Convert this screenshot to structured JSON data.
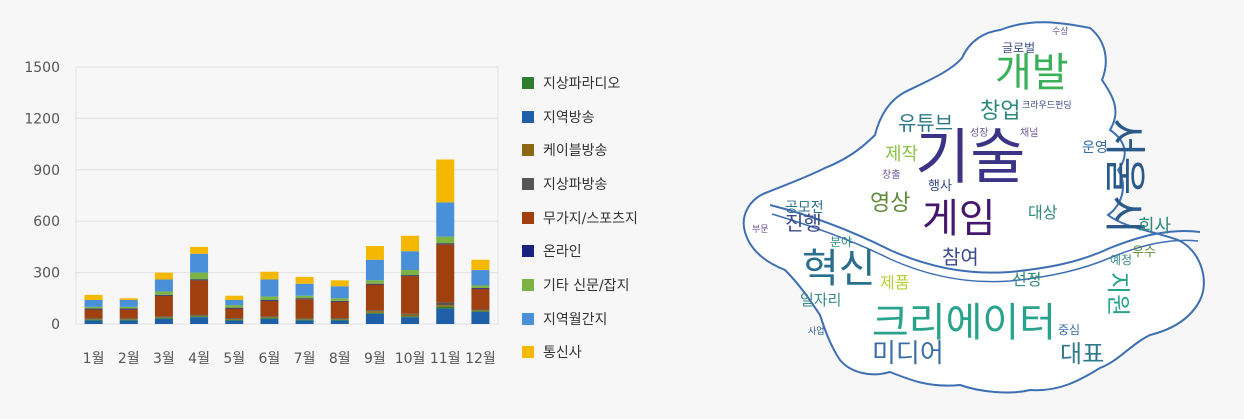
{
  "chart_data": {
    "type": "bar",
    "stacked": true,
    "categories": [
      "1월",
      "2월",
      "3월",
      "4월",
      "5월",
      "6월",
      "7월",
      "8월",
      "9월",
      "10월",
      "11월",
      "12월"
    ],
    "y_ticks": [
      "1500",
      "1200",
      "900",
      "600",
      "300",
      "0"
    ],
    "ylim": [
      0,
      1500
    ],
    "grid": true,
    "legend_position": "right",
    "series": [
      {
        "name": "통신사",
        "color": "#f5b800",
        "values": [
          30,
          10,
          40,
          40,
          25,
          45,
          40,
          35,
          80,
          90,
          250,
          60
        ]
      },
      {
        "name": "지역월간지",
        "color": "#4a90d9",
        "values": [
          40,
          40,
          70,
          110,
          30,
          100,
          70,
          70,
          120,
          110,
          200,
          90
        ]
      },
      {
        "name": "기타 신문/잡지",
        "color": "#7cb342",
        "values": [
          10,
          10,
          20,
          40,
          15,
          20,
          15,
          15,
          20,
          30,
          40,
          15
        ]
      },
      {
        "name": "온라인",
        "color": "#1a237e",
        "values": [
          5,
          5,
          5,
          5,
          5,
          5,
          5,
          5,
          5,
          5,
          5,
          5
        ]
      },
      {
        "name": "무가지/스포츠지",
        "color": "#a0400f",
        "values": [
          50,
          50,
          120,
          200,
          55,
          90,
          110,
          95,
          150,
          220,
          340,
          120
        ]
      },
      {
        "name": "지상파방송",
        "color": "#555555",
        "values": [
          5,
          5,
          5,
          5,
          5,
          5,
          5,
          5,
          5,
          5,
          15,
          5
        ]
      },
      {
        "name": "케이블방송",
        "color": "#8b6914",
        "values": [
          5,
          5,
          5,
          5,
          5,
          5,
          5,
          5,
          10,
          10,
          10,
          5
        ]
      },
      {
        "name": "지역방송",
        "color": "#1f5fa8",
        "values": [
          20,
          20,
          30,
          40,
          20,
          30,
          20,
          20,
          60,
          40,
          90,
          70
        ]
      },
      {
        "name": "지상파라디오",
        "color": "#2e7d32",
        "values": [
          5,
          5,
          5,
          5,
          5,
          5,
          5,
          5,
          5,
          5,
          10,
          5
        ]
      }
    ],
    "bar_stack_order": [
      "지역방송",
      "지상파라디오",
      "케이블방송",
      "지상파방송",
      "무가지/스포츠지",
      "온라인",
      "기타 신문/잡지",
      "지역월간지",
      "통신사"
    ],
    "segment_colors_bottom_to_top": [
      "#1f5fa8",
      "#e8772e",
      "#f5b800",
      "#4a90d9",
      "#7cb342",
      "#8b4513",
      "#a0400f",
      "#555555",
      "#8b6914"
    ]
  },
  "wordcloud": {
    "words": [
      {
        "text": "기술",
        "color": "#3b3486"
      },
      {
        "text": "개발",
        "color": "#3bb05a"
      },
      {
        "text": "게임",
        "color": "#46176e"
      },
      {
        "text": "서울시",
        "color": "#2a5a8a"
      },
      {
        "text": "혁신",
        "color": "#2b6f8e"
      },
      {
        "text": "크리에이터",
        "color": "#2aa38d"
      },
      {
        "text": "미디어",
        "color": "#3a6ea5"
      },
      {
        "text": "창업",
        "color": "#2a8a7a"
      },
      {
        "text": "유튜브",
        "color": "#2e7a8a"
      },
      {
        "text": "제작",
        "color": "#8bc34a"
      },
      {
        "text": "영상",
        "color": "#5e8a3a"
      },
      {
        "text": "진행",
        "color": "#3a4a8a"
      },
      {
        "text": "참여",
        "color": "#3a4a8a"
      },
      {
        "text": "대상",
        "color": "#2e8a7a"
      },
      {
        "text": "선정",
        "color": "#2e8a7a"
      },
      {
        "text": "지원",
        "color": "#2aa38d"
      },
      {
        "text": "대표",
        "color": "#2e7a8a"
      },
      {
        "text": "회사",
        "color": "#2e8a7a"
      },
      {
        "text": "제품",
        "color": "#b2d235"
      },
      {
        "text": "운영",
        "color": "#3a6ea5"
      },
      {
        "text": "공모전",
        "color": "#2b6f8e"
      },
      {
        "text": "일자리",
        "color": "#3a8a8a"
      },
      {
        "text": "행사",
        "color": "#3a4a8a"
      },
      {
        "text": "우수",
        "color": "#5e8a3a"
      },
      {
        "text": "예정",
        "color": "#3a8a8a"
      },
      {
        "text": "분야",
        "color": "#2e8a7a"
      },
      {
        "text": "중심",
        "color": "#3a6ea5"
      },
      {
        "text": "글로벌",
        "color": "#3a4a8a"
      },
      {
        "text": "크라우드펀딩",
        "color": "#3a4a8a"
      },
      {
        "text": "성장",
        "color": "#6a5a9a"
      },
      {
        "text": "채널",
        "color": "#6a5a9a"
      },
      {
        "text": "창출",
        "color": "#6a5a9a"
      },
      {
        "text": "부문",
        "color": "#6a5a9a"
      },
      {
        "text": "사업",
        "color": "#2a5a8a"
      },
      {
        "text": "수상",
        "color": "#6a5a9a"
      }
    ]
  }
}
